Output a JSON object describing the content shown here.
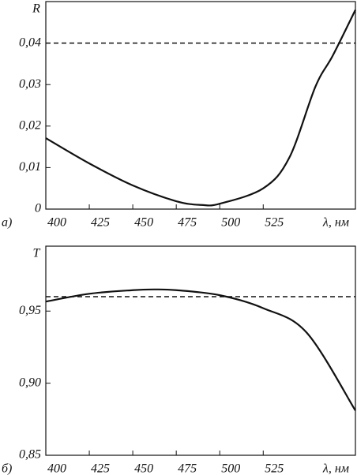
{
  "chart_data": [
    {
      "type": "line",
      "panel_label": "а)",
      "ylabel": "R",
      "xlabel": "λ, нм",
      "x": [
        400,
        425,
        450,
        475,
        489.5,
        500,
        525,
        540,
        555,
        565,
        578
      ],
      "values": [
        0.0171,
        0.011,
        0.0057,
        0.0019,
        0.001,
        0.0013,
        0.005,
        0.0124,
        0.0295,
        0.037,
        0.048
      ],
      "color": "#111111",
      "reference_line": 0.04,
      "xlim": [
        400,
        578
      ],
      "xticks": [
        400,
        425,
        450,
        475,
        500,
        525
      ],
      "ylim": [
        0,
        0.05
      ],
      "yticks": [
        0,
        {
          "value": 0.01,
          "label": "0,01"
        },
        {
          "value": 0.02,
          "label": "0,02"
        },
        {
          "value": 0.03,
          "label": "0,03"
        },
        {
          "value": 0.04,
          "label": "0,04"
        }
      ]
    },
    {
      "type": "line",
      "panel_label": "б)",
      "ylabel": "T",
      "xlabel": "λ, нм",
      "x": [
        400,
        425,
        450,
        462,
        475,
        500,
        525,
        550,
        578
      ],
      "values": [
        0.9566,
        0.962,
        0.9645,
        0.965,
        0.9645,
        0.961,
        0.952,
        0.935,
        0.881
      ],
      "color": "#111111",
      "reference_line": 0.96,
      "xlim": [
        400,
        578
      ],
      "xticks": [
        400,
        425,
        450,
        475,
        500,
        525
      ],
      "ylim": [
        0.85,
        0.995
      ],
      "yticks": [
        {
          "value": 0.85,
          "label": "0,85"
        },
        {
          "value": 0.9,
          "label": "0,90"
        },
        {
          "value": 0.95,
          "label": "0,95"
        }
      ]
    }
  ]
}
